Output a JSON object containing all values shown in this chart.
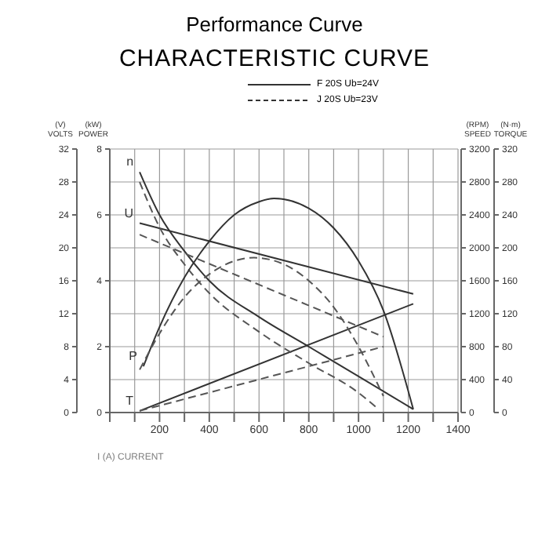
{
  "chart_data": [
    {
      "type": "line",
      "title": "Performance Curve",
      "subtitle": "CHARACTERISTIC CURVE",
      "xlabel": "I (A) CURRENT",
      "ylabel": "(N·m) TORQUE",
      "y2label": "(RPM) SPEED",
      "y3label": "(V) VOLTS",
      "annotations": [
        "F 20S  Ub=24V",
        "J 20S  Ub=23V"
      ],
      "xlim": [
        0,
        1400
      ],
      "xticks": [
        {
          "value": 0,
          "label": null
        },
        {
          "value": 100,
          "label": null
        },
        200,
        {
          "value": 300,
          "label": null
        },
        400,
        {
          "value": 500,
          "label": null
        },
        600,
        {
          "value": 700,
          "label": null
        },
        800,
        {
          "value": 900,
          "label": null
        },
        1000,
        {
          "value": 1100,
          "label": null
        },
        1200,
        {
          "value": 1300,
          "label": null
        },
        1400
      ],
      "ylim": [
        0,
        320
      ],
      "yticks": [
        0,
        40,
        80,
        120,
        160,
        200,
        240,
        280,
        320
      ],
      "y2lim": [
        0,
        3200
      ],
      "y2ticks": [
        0,
        400,
        800,
        1200,
        1600,
        2000,
        2400,
        2800,
        3200
      ],
      "y3lim": [
        0,
        32
      ],
      "y3ticks": [
        0,
        4,
        8,
        12,
        16,
        20,
        24,
        28,
        32
      ],
      "grid": true,
      "legend": false,
      "marker": "none",
      "series": [
        {
          "name": "n",
          "color": "#333333",
          "axis": "y2",
          "line_style": "solid",
          "x": [
            120,
            200,
            300,
            400,
            600,
            800,
            1000,
            1220
          ],
          "values": [
            2920,
            2400,
            1960,
            1600,
            1160,
            800,
            440,
            40
          ]
        },
        {
          "name": "U",
          "color": "#333333",
          "axis": "y3",
          "line_style": "solid",
          "x": [
            120,
            1220
          ],
          "values": [
            23,
            14.4
          ]
        },
        {
          "name": "T",
          "color": "#333333",
          "line_style": "solid",
          "x": [
            120,
            1220
          ],
          "values": [
            2,
            132
          ]
        },
        {
          "color": "#555555",
          "axis": "y2",
          "line_style": "dashed",
          "x": [
            120,
            200,
            300,
            400,
            600,
            800,
            1000,
            1080
          ],
          "values": [
            2800,
            2250,
            1800,
            1450,
            980,
            600,
            240,
            40
          ]
        },
        {
          "color": "#555555",
          "axis": "y3",
          "line_style": "dashed",
          "x": [
            120,
            1100
          ],
          "values": [
            21.6,
            9.2
          ]
        },
        {
          "color": "#555555",
          "line_style": "dashed",
          "x": [
            120,
            1100
          ],
          "values": [
            2,
            80
          ]
        }
      ]
    },
    {
      "type": "line",
      "ylabel": "(kW) POWER",
      "xlim": [
        0,
        1400
      ],
      "ylim": [
        0,
        8
      ],
      "yticks": [
        0,
        2,
        4,
        6,
        8
      ],
      "tick_labels": "y",
      "marker": "none",
      "series": [
        {
          "name": "P",
          "color": "#333333",
          "line_style": "solid",
          "x": [
            135,
            200,
            300,
            400,
            500,
            600,
            660,
            800,
            900,
            1000,
            1100,
            1220
          ],
          "values": [
            1.4,
            2.6,
            4.1,
            5.2,
            6.0,
            6.4,
            6.5,
            6.2,
            5.6,
            4.6,
            3.1,
            0.1
          ]
        },
        {
          "color": "#555555",
          "line_style": "dashed",
          "x": [
            120,
            200,
            300,
            400,
            500,
            580,
            700,
            800,
            900,
            1000,
            1100
          ],
          "values": [
            1.3,
            2.4,
            3.5,
            4.2,
            4.6,
            4.7,
            4.5,
            4.0,
            3.2,
            2.0,
            0.5
          ]
        }
      ]
    }
  ]
}
